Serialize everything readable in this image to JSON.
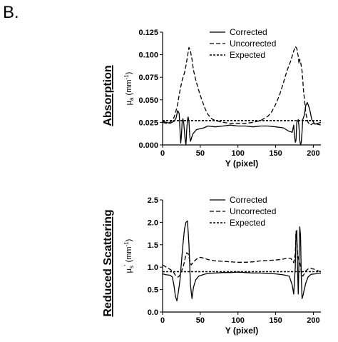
{
  "figure": {
    "panel_label": "B."
  },
  "chart_data": [
    {
      "type": "line",
      "side_label": "Absorption",
      "title": "",
      "xlabel": "Y (pixel)",
      "ylabel_main": "μ",
      "ylabel_sub": "a",
      "ylabel_unit_pre": " (mm",
      "ylabel_unit_sup": "-1",
      "ylabel_unit_post": ")",
      "xlim": [
        0,
        210
      ],
      "ylim": [
        0,
        0.125
      ],
      "xticks": [
        0,
        50,
        100,
        150,
        200
      ],
      "xtick_labels": [
        "0",
        "50",
        "100",
        "150",
        "200"
      ],
      "yticks": [
        0,
        0.025,
        0.05,
        0.075,
        0.1,
        0.125
      ],
      "ytick_labels": [
        "0.000",
        "0.025",
        "0.050",
        "0.075",
        "0.100",
        "0.125"
      ],
      "grid": false,
      "legend_position": "top-right",
      "series": [
        {
          "name": "Corrected",
          "style": "solid",
          "points": [
            [
              0,
              0.026
            ],
            [
              5,
              0.025
            ],
            [
              10,
              0.024
            ],
            [
              15,
              0.026
            ],
            [
              18,
              0.03
            ],
            [
              20,
              0.038
            ],
            [
              22,
              0.035
            ],
            [
              23,
              0.018
            ],
            [
              24,
              0.002
            ],
            [
              25,
              0.01
            ],
            [
              26,
              0.026
            ],
            [
              27,
              0.029
            ],
            [
              28,
              0.025
            ],
            [
              29,
              0.015
            ],
            [
              30,
              0.005
            ],
            [
              31,
              0.0
            ],
            [
              32,
              0.016
            ],
            [
              33,
              0.028
            ],
            [
              34,
              0.031
            ],
            [
              35,
              0.026
            ],
            [
              36,
              0.01
            ],
            [
              37,
              0.004
            ],
            [
              40,
              0.012
            ],
            [
              45,
              0.017
            ],
            [
              50,
              0.018
            ],
            [
              55,
              0.019
            ],
            [
              60,
              0.021
            ],
            [
              70,
              0.02
            ],
            [
              80,
              0.021
            ],
            [
              90,
              0.022
            ],
            [
              100,
              0.021
            ],
            [
              110,
              0.021
            ],
            [
              120,
              0.02
            ],
            [
              130,
              0.021
            ],
            [
              140,
              0.021
            ],
            [
              150,
              0.02
            ],
            [
              160,
              0.019
            ],
            [
              168,
              0.015
            ],
            [
              172,
              0.014
            ],
            [
              174,
              0.022
            ],
            [
              175,
              0.01
            ],
            [
              176,
              0.003
            ],
            [
              177,
              0.005
            ],
            [
              178,
              0.025
            ],
            [
              180,
              0.028
            ],
            [
              181,
              0.02
            ],
            [
              182,
              0.005
            ],
            [
              183,
              0.0
            ],
            [
              184,
              0.003
            ],
            [
              185,
              0.015
            ],
            [
              186,
              0.028
            ],
            [
              188,
              0.033
            ],
            [
              190,
              0.044
            ],
            [
              192,
              0.047
            ],
            [
              195,
              0.04
            ],
            [
              198,
              0.028
            ],
            [
              202,
              0.023
            ],
            [
              206,
              0.024
            ],
            [
              210,
              0.025
            ]
          ]
        },
        {
          "name": "Uncorrected",
          "style": "dashed",
          "points": [
            [
              0,
              0.025
            ],
            [
              5,
              0.024
            ],
            [
              10,
              0.025
            ],
            [
              14,
              0.028
            ],
            [
              17,
              0.035
            ],
            [
              20,
              0.045
            ],
            [
              23,
              0.06
            ],
            [
              26,
              0.072
            ],
            [
              29,
              0.08
            ],
            [
              31,
              0.088
            ],
            [
              33,
              0.098
            ],
            [
              35,
              0.108
            ],
            [
              37,
              0.104
            ],
            [
              39,
              0.095
            ],
            [
              41,
              0.083
            ],
            [
              44,
              0.072
            ],
            [
              47,
              0.063
            ],
            [
              50,
              0.055
            ],
            [
              53,
              0.048
            ],
            [
              56,
              0.041
            ],
            [
              60,
              0.034
            ],
            [
              65,
              0.029
            ],
            [
              70,
              0.027
            ],
            [
              80,
              0.025
            ],
            [
              90,
              0.024
            ],
            [
              100,
              0.024
            ],
            [
              110,
              0.024
            ],
            [
              120,
              0.025
            ],
            [
              130,
              0.027
            ],
            [
              140,
              0.032
            ],
            [
              145,
              0.037
            ],
            [
              150,
              0.045
            ],
            [
              155,
              0.055
            ],
            [
              160,
              0.068
            ],
            [
              165,
              0.082
            ],
            [
              170,
              0.093
            ],
            [
              174,
              0.104
            ],
            [
              176,
              0.109
            ],
            [
              178,
              0.107
            ],
            [
              180,
              0.098
            ],
            [
              181,
              0.09
            ],
            [
              182,
              0.095
            ],
            [
              183,
              0.092
            ],
            [
              185,
              0.082
            ],
            [
              187,
              0.06
            ],
            [
              190,
              0.035
            ],
            [
              193,
              0.025
            ],
            [
              196,
              0.022
            ],
            [
              200,
              0.024
            ],
            [
              205,
              0.023
            ],
            [
              210,
              0.022
            ]
          ]
        },
        {
          "name": "Expected",
          "style": "dotted",
          "points": [
            [
              0,
              0.027
            ],
            [
              210,
              0.027
            ]
          ]
        }
      ]
    },
    {
      "type": "line",
      "side_label": "Reduced Scattering",
      "title": "",
      "xlabel": "Y (pixel)",
      "ylabel_main": "μ",
      "ylabel_sub": "s",
      "ylabel_sup": "'",
      "ylabel_unit_pre": " (mm",
      "ylabel_unit_sup": "-1",
      "ylabel_unit_post": ")",
      "xlim": [
        0,
        210
      ],
      "ylim": [
        0,
        2.5
      ],
      "xticks": [
        0,
        50,
        100,
        150,
        200
      ],
      "xtick_labels": [
        "0",
        "50",
        "100",
        "150",
        "200"
      ],
      "yticks": [
        0,
        0.5,
        1.0,
        1.5,
        2.0,
        2.5
      ],
      "ytick_labels": [
        "0.0",
        "0.5",
        "1.0",
        "1.5",
        "2.0",
        "2.5"
      ],
      "grid": false,
      "legend_position": "top-right",
      "series": [
        {
          "name": "Corrected",
          "style": "solid",
          "points": [
            [
              0,
              0.85
            ],
            [
              5,
              0.83
            ],
            [
              10,
              0.82
            ],
            [
              13,
              0.78
            ],
            [
              15,
              0.6
            ],
            [
              17,
              0.35
            ],
            [
              19,
              0.25
            ],
            [
              21,
              0.45
            ],
            [
              23,
              0.7
            ],
            [
              25,
              1.1
            ],
            [
              27,
              1.5
            ],
            [
              29,
              1.85
            ],
            [
              31,
              2.0
            ],
            [
              33,
              2.03
            ],
            [
              35,
              1.5
            ],
            [
              37,
              0.6
            ],
            [
              39,
              0.3
            ],
            [
              41,
              0.55
            ],
            [
              44,
              0.72
            ],
            [
              48,
              0.8
            ],
            [
              55,
              0.84
            ],
            [
              60,
              0.86
            ],
            [
              70,
              0.87
            ],
            [
              80,
              0.88
            ],
            [
              90,
              0.88
            ],
            [
              100,
              0.89
            ],
            [
              110,
              0.88
            ],
            [
              120,
              0.87
            ],
            [
              130,
              0.87
            ],
            [
              140,
              0.86
            ],
            [
              150,
              0.85
            ],
            [
              160,
              0.83
            ],
            [
              168,
              0.8
            ],
            [
              172,
              0.6
            ],
            [
              174,
              0.4
            ],
            [
              176,
              1.0
            ],
            [
              177,
              1.75
            ],
            [
              178,
              1.82
            ],
            [
              179,
              1.0
            ],
            [
              180,
              0.4
            ],
            [
              181,
              1.2
            ],
            [
              182,
              1.9
            ],
            [
              183,
              1.7
            ],
            [
              184,
              0.8
            ],
            [
              185,
              0.3
            ],
            [
              186,
              0.35
            ],
            [
              188,
              0.5
            ],
            [
              190,
              0.65
            ],
            [
              193,
              0.78
            ],
            [
              197,
              0.84
            ],
            [
              202,
              0.85
            ],
            [
              206,
              0.86
            ],
            [
              210,
              0.87
            ]
          ]
        },
        {
          "name": "Uncorrected",
          "style": "dashed",
          "points": [
            [
              0,
              1.05
            ],
            [
              5,
              1.0
            ],
            [
              10,
              0.95
            ],
            [
              14,
              0.9
            ],
            [
              17,
              0.82
            ],
            [
              20,
              0.78
            ],
            [
              22,
              0.8
            ],
            [
              24,
              0.85
            ],
            [
              26,
              0.95
            ],
            [
              28,
              1.05
            ],
            [
              30,
              1.2
            ],
            [
              32,
              1.32
            ],
            [
              34,
              1.3
            ],
            [
              36,
              1.15
            ],
            [
              38,
              1.05
            ],
            [
              40,
              1.1
            ],
            [
              45,
              1.18
            ],
            [
              50,
              1.22
            ],
            [
              55,
              1.2
            ],
            [
              60,
              1.17
            ],
            [
              70,
              1.14
            ],
            [
              80,
              1.13
            ],
            [
              90,
              1.12
            ],
            [
              100,
              1.11
            ],
            [
              110,
              1.11
            ],
            [
              120,
              1.12
            ],
            [
              130,
              1.14
            ],
            [
              140,
              1.15
            ],
            [
              150,
              1.16
            ],
            [
              160,
              1.18
            ],
            [
              165,
              1.2
            ],
            [
              170,
              1.2
            ],
            [
              172,
              1.15
            ],
            [
              174,
              1.1
            ],
            [
              176,
              1.3
            ],
            [
              177,
              1.8
            ],
            [
              178,
              1.7
            ],
            [
              179,
              1.3
            ],
            [
              180,
              1.2
            ],
            [
              182,
              1.1
            ],
            [
              184,
              0.9
            ],
            [
              186,
              0.8
            ],
            [
              188,
              0.85
            ],
            [
              190,
              0.92
            ],
            [
              193,
              0.96
            ],
            [
              197,
              0.97
            ],
            [
              202,
              0.95
            ],
            [
              206,
              0.92
            ],
            [
              210,
              0.9
            ]
          ]
        },
        {
          "name": "Expected",
          "style": "dotted",
          "points": [
            [
              0,
              0.9
            ],
            [
              210,
              0.9
            ]
          ]
        }
      ]
    }
  ]
}
